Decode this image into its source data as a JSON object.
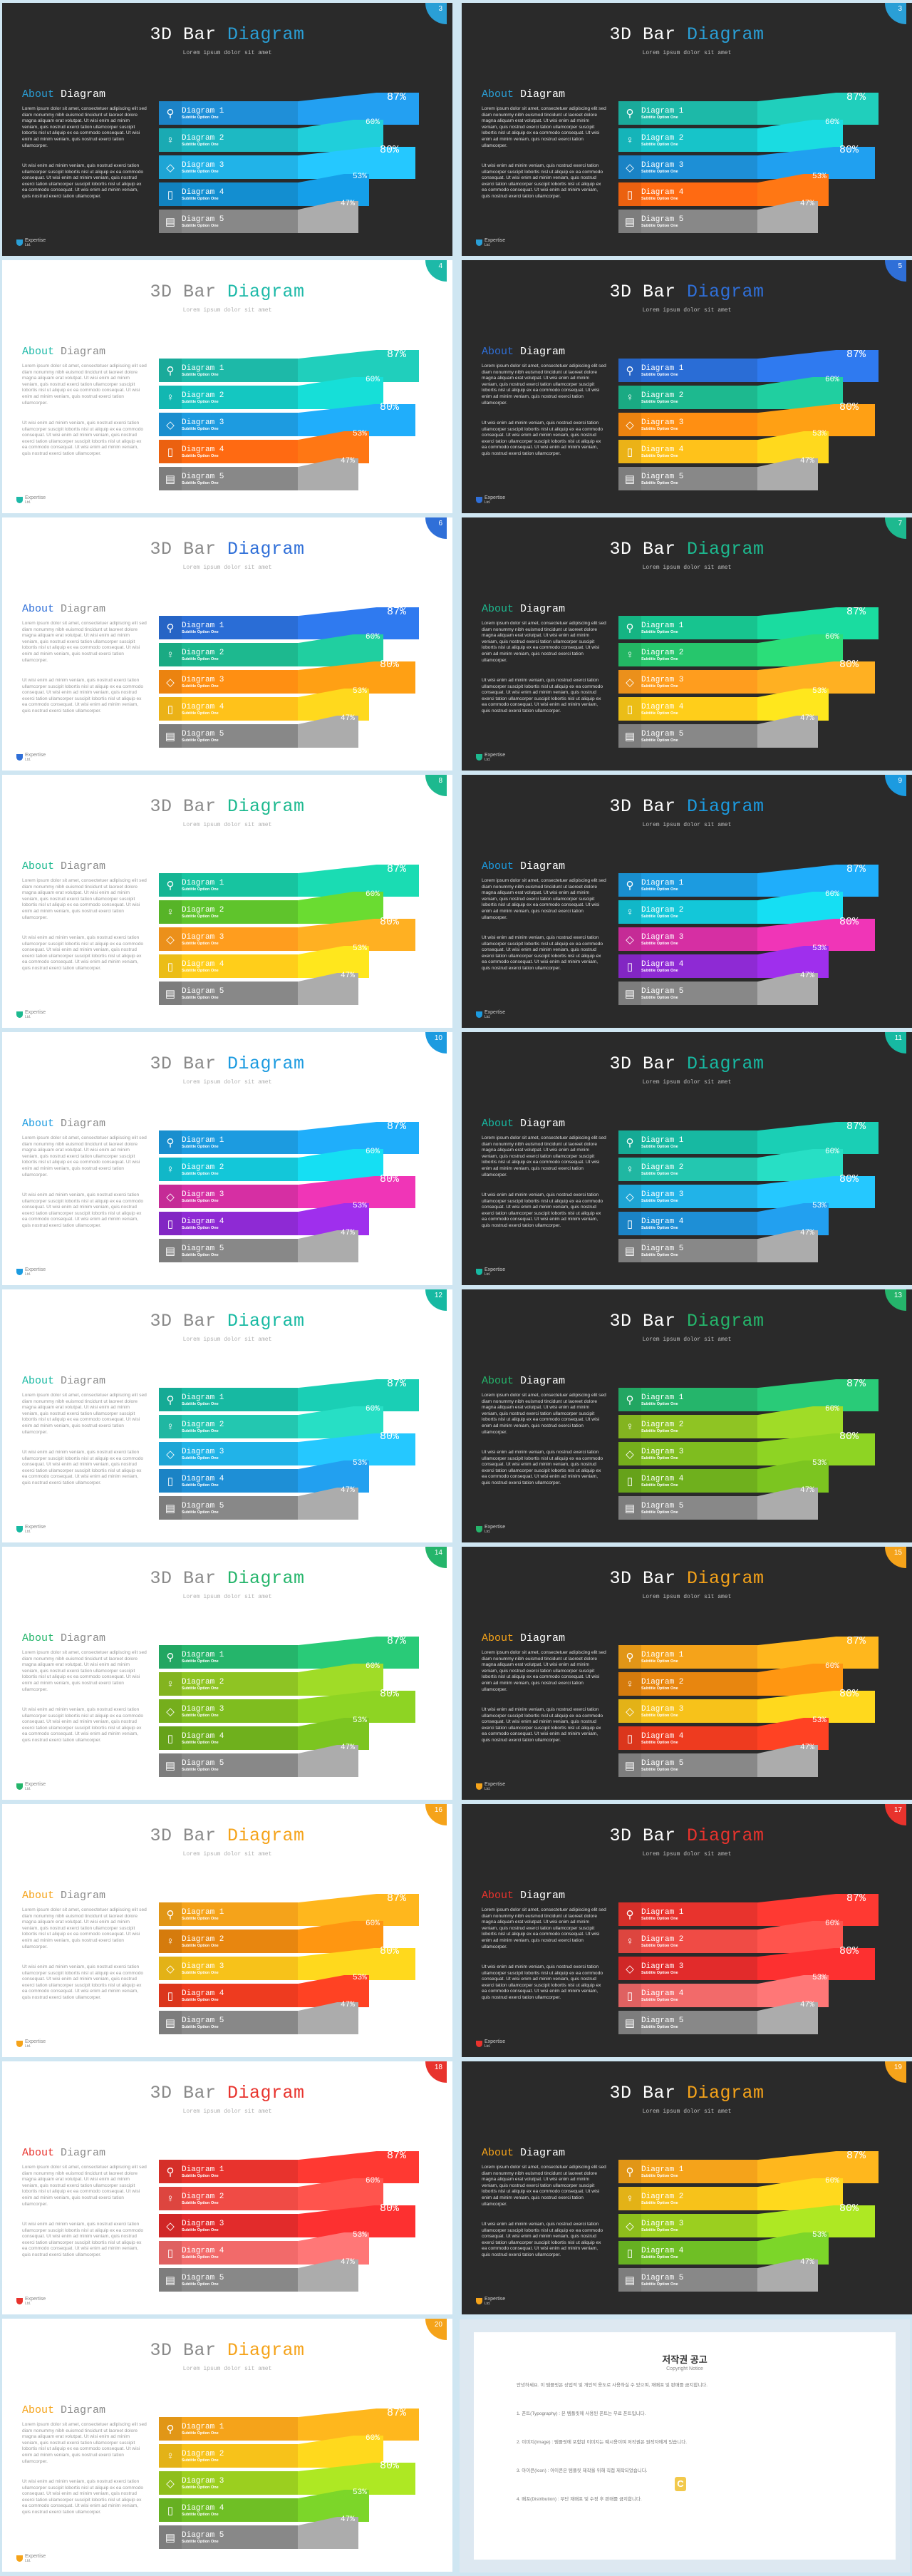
{
  "common": {
    "title_a": "3D Bar",
    "title_b": "Diagram",
    "subtitle": "Lorem ipsum dolor sit amet",
    "about_a": "About",
    "about_b": "Diagram",
    "para1": "Lorem ipsum dolor sit amet, consectetuer adipiscing elit sed diam nonummy nibh euismod tincidunt ut laoreet dolore magna aliquam erat volutpat. Ut wisi enim ad minim veniam, quis nostrud exerci tation ullamcorper suscipit lobortis nisl ut aliquip ex ea commodo consequat. Ut wisi enim ad minim veniam, quis nostrud exerci tation ullamcorper.",
    "para2": "Ut wisi enim ad minim veniam, quis nostrud exerci tation ullamcorper suscipit lobortis nisl ut aliquip ex ea commodo consequat. Ut wisi enim ad minim veniam, quis nostrud exerci tation ullamcorper suscipit lobortis nisl ut aliquip ex ea commodo consequat. Ut wisi enim ad minim veniam, quis nostrud exerci tation ullamcorper.",
    "row_labels": [
      "Diagram 1",
      "Diagram 2",
      "Diagram 3",
      "Diagram 4",
      "Diagram 5"
    ],
    "row_sub": "Subtitle Option One",
    "row_icons": [
      "search-icon",
      "lightbulb-icon",
      "diamond-icon",
      "phone-icon",
      "calculator-icon"
    ],
    "row_glyphs": [
      "⚲",
      "♀",
      "◇",
      "▯",
      "▤"
    ],
    "percents": [
      "87%",
      "60%",
      "80%",
      "53%",
      "47%"
    ],
    "logo_name": "Expertise",
    "logo_sub": "Ltd."
  },
  "slides": [
    {
      "num": "3",
      "theme": "dark",
      "accent": "#2a9fd6",
      "colors": [
        "#1f8fd8",
        "#1db9c3",
        "#21b3e8",
        "#138ed0",
        "#888888"
      ]
    },
    {
      "num": "3",
      "theme": "dark",
      "accent": "#2a9fd6",
      "colors": [
        "#1db9a8",
        "#17c4c9",
        "#1d8fd6",
        "#ff6a12",
        "#888888"
      ]
    },
    {
      "num": "4",
      "theme": "light",
      "accent": "#1db9a8",
      "colors": [
        "#1db9a8",
        "#14c7c1",
        "#1d9be0",
        "#ff6a12",
        "#888888"
      ]
    },
    {
      "num": "5",
      "theme": "dark",
      "accent": "#2f6fd8",
      "colors": [
        "#2a6dd6",
        "#1db98f",
        "#ff8f12",
        "#ffc21a",
        "#888888"
      ]
    },
    {
      "num": "6",
      "theme": "light",
      "accent": "#2f6fd8",
      "colors": [
        "#2a6dd6",
        "#1db98f",
        "#ff8f12",
        "#ffc21a",
        "#888888"
      ]
    },
    {
      "num": "7",
      "theme": "dark",
      "accent": "#1db98f",
      "colors": [
        "#17c48f",
        "#26c66c",
        "#ff9d1e",
        "#ffce1a",
        "#888888"
      ]
    },
    {
      "num": "8",
      "theme": "light",
      "accent": "#1db98f",
      "colors": [
        "#17c4a0",
        "#5fc42c",
        "#ff9d1e",
        "#ffce1a",
        "#888888"
      ]
    },
    {
      "num": "9",
      "theme": "dark",
      "accent": "#1c9be0",
      "colors": [
        "#1c9be0",
        "#13c7d9",
        "#d62fa3",
        "#8e2ad4",
        "#888888"
      ]
    },
    {
      "num": "10",
      "theme": "light",
      "accent": "#1c9be0",
      "colors": [
        "#1c9be0",
        "#13c7d9",
        "#d62fa3",
        "#8e2ad4",
        "#888888"
      ]
    },
    {
      "num": "11",
      "theme": "dark",
      "accent": "#17b9a2",
      "colors": [
        "#17b9a2",
        "#23c7b0",
        "#21b3e8",
        "#1e8fd6",
        "#888888"
      ]
    },
    {
      "num": "12",
      "theme": "light",
      "accent": "#17b9a2",
      "colors": [
        "#17b9a2",
        "#23c7b0",
        "#21b3e8",
        "#1e8fd6",
        "#888888"
      ]
    },
    {
      "num": "13",
      "theme": "dark",
      "accent": "#25b56b",
      "colors": [
        "#25b56b",
        "#8fc423",
        "#7fbd1f",
        "#6fb01d",
        "#888888"
      ]
    },
    {
      "num": "14",
      "theme": "light",
      "accent": "#25b56b",
      "colors": [
        "#25b56b",
        "#8fc423",
        "#7fbd1f",
        "#6fb01d",
        "#888888"
      ]
    },
    {
      "num": "15",
      "theme": "dark",
      "accent": "#f5a31a",
      "colors": [
        "#f5a31a",
        "#e8860f",
        "#f7c21a",
        "#ee3b1f",
        "#888888"
      ]
    },
    {
      "num": "16",
      "theme": "light",
      "accent": "#f5a31a",
      "colors": [
        "#f5a31a",
        "#e8860f",
        "#f7c21a",
        "#ee3b1f",
        "#888888"
      ]
    },
    {
      "num": "17",
      "theme": "dark",
      "accent": "#e8332d",
      "colors": [
        "#e8332d",
        "#f04b45",
        "#e22b2b",
        "#f26a6a",
        "#888888"
      ]
    },
    {
      "num": "18",
      "theme": "light",
      "accent": "#e8332d",
      "colors": [
        "#e8332d",
        "#f04b45",
        "#e22b2b",
        "#f26a6a",
        "#888888"
      ]
    },
    {
      "num": "19",
      "theme": "dark",
      "accent": "#f5a31a",
      "colors": [
        "#f5a31a",
        "#f7c21a",
        "#9bcf1f",
        "#6fbf25",
        "#888888"
      ]
    },
    {
      "num": "20",
      "theme": "light",
      "accent": "#f5a31a",
      "colors": [
        "#f5a31a",
        "#f7c21a",
        "#9bcf1f",
        "#6fbf25",
        "#888888"
      ]
    }
  ],
  "notice": {
    "title": "저작권 공고",
    "subtitle": "Copyright Notice",
    "logo_letter": "C",
    "lines": [
      "안녕하세요. 이 템플릿은 상업적 및 개인적 용도로 사용하실 수 있으며, 재배포 및 판매를 금지합니다.",
      "1. 폰트(Typography) : 본 템플릿에 사용된 폰트는 무료 폰트입니다.",
      "2. 이미지(Image) : 템플릿에 포함된 이미지는 예시용이며 저작권은 원작자에게 있습니다.",
      "3. 아이콘(Icon) : 아이콘은 템플릿 제작을 위해 직접 제작되었습니다.",
      "4. 배포(Distribution) : 무단 재배포 및 수정 후 판매를 금지합니다."
    ]
  }
}
